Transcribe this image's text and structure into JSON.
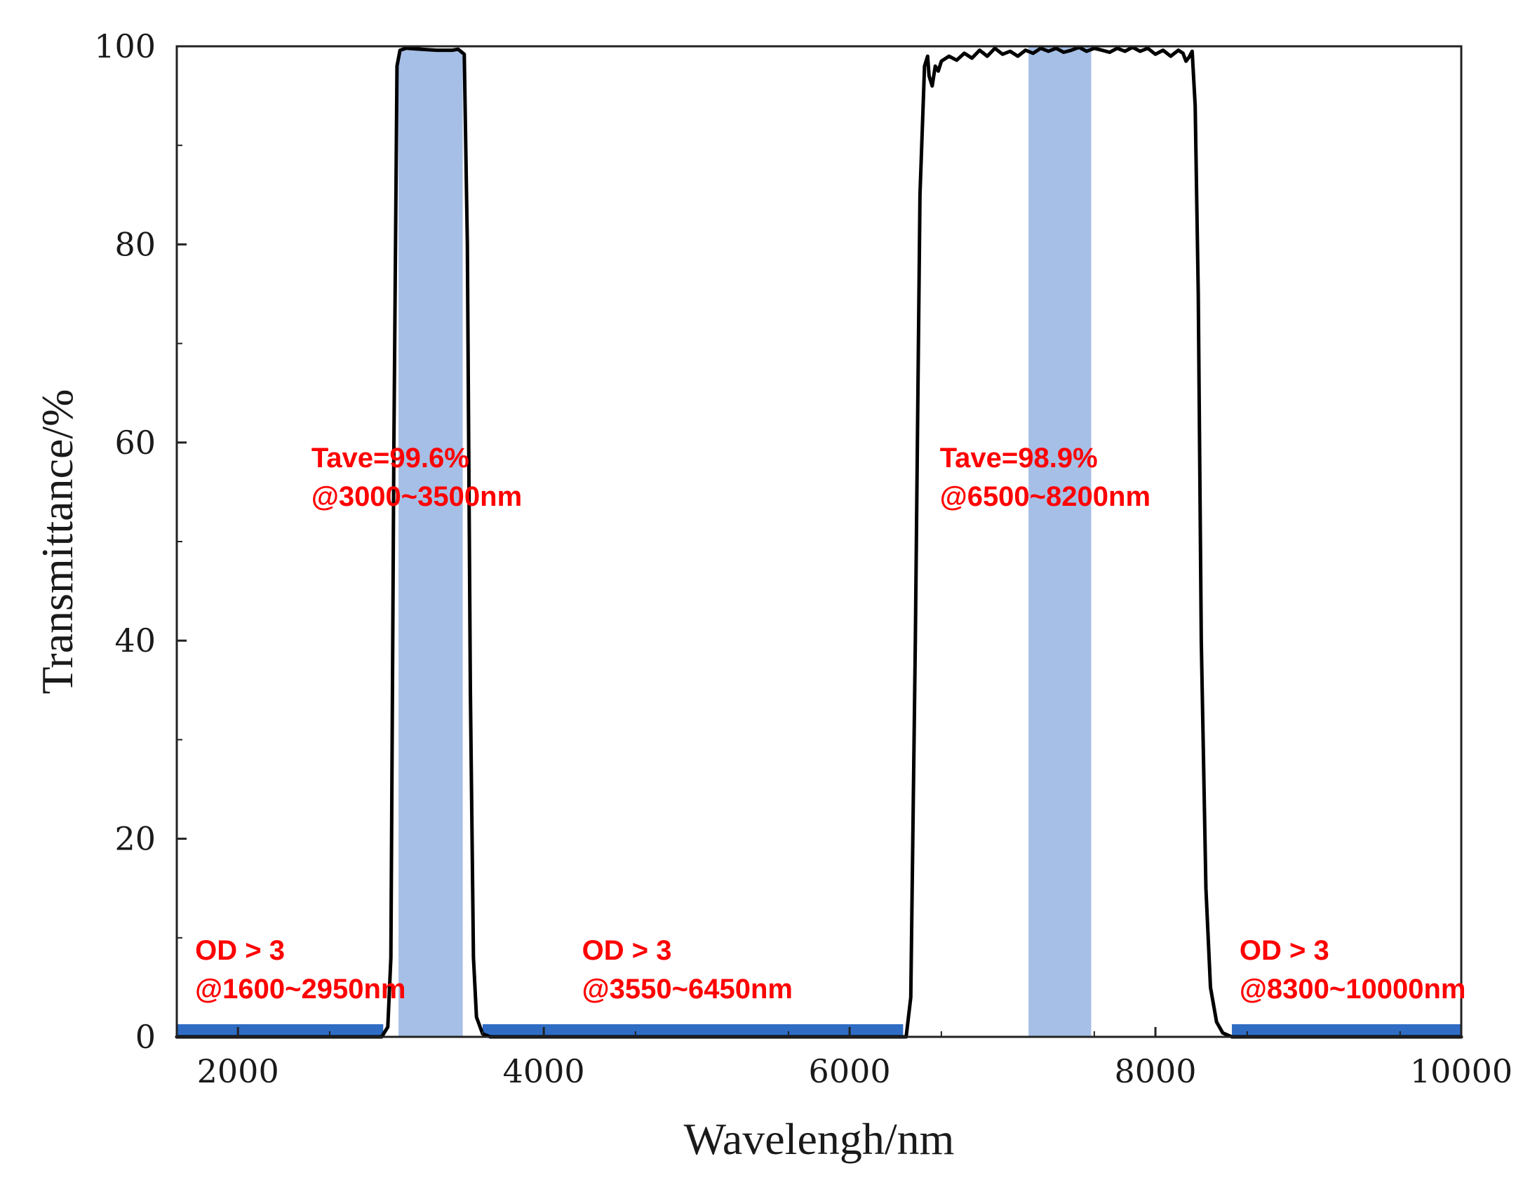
{
  "chart_data": {
    "type": "line",
    "title": "",
    "xlabel": "Wavelengh/nm",
    "ylabel": "Transmittance/%",
    "xlim": [
      1600,
      10000
    ],
    "ylim": [
      0,
      100
    ],
    "x_ticks": [
      2000,
      4000,
      6000,
      8000,
      10000
    ],
    "y_ticks": [
      0,
      20,
      40,
      60,
      80,
      100
    ],
    "x_minor_step": 1000,
    "y_minor_step": 10,
    "grid": false,
    "series": [
      {
        "name": "transmittance",
        "x": [
          1600,
          2940,
          2980,
          3000,
          3020,
          3040,
          3060,
          3100,
          3200,
          3300,
          3400,
          3440,
          3480,
          3500,
          3520,
          3540,
          3560,
          3600,
          3650,
          6370,
          6400,
          6430,
          6460,
          6490,
          6510,
          6520,
          6540,
          6560,
          6580,
          6600,
          6650,
          6700,
          6750,
          6800,
          6850,
          6900,
          6950,
          7000,
          7050,
          7100,
          7150,
          7200,
          7250,
          7300,
          7350,
          7400,
          7450,
          7500,
          7550,
          7600,
          7650,
          7700,
          7750,
          7800,
          7850,
          7900,
          7950,
          8000,
          8050,
          8100,
          8150,
          8180,
          8200,
          8220,
          8240,
          8260,
          8280,
          8300,
          8330,
          8360,
          8400,
          8440,
          8500,
          10000
        ],
        "y": [
          0,
          0,
          1,
          8,
          60,
          98,
          99.6,
          99.8,
          99.7,
          99.6,
          99.6,
          99.7,
          99.2,
          80,
          35,
          8,
          2,
          0.3,
          0,
          0,
          4,
          40,
          85,
          98,
          99,
          97,
          96,
          98,
          97.5,
          98.5,
          99,
          98.6,
          99.3,
          98.8,
          99.6,
          99.0,
          99.8,
          99.2,
          99.5,
          99.0,
          99.6,
          99.3,
          99.8,
          99.5,
          99.8,
          99.4,
          99.6,
          99.9,
          99.5,
          99.8,
          99.6,
          99.4,
          99.8,
          99.5,
          99.9,
          99.5,
          99.8,
          99.2,
          99.6,
          99.0,
          99.6,
          99.3,
          98.5,
          98.9,
          99.5,
          94,
          75,
          40,
          15,
          5,
          1.5,
          0.4,
          0,
          0
        ],
        "color": "#000000"
      }
    ],
    "shaded_bands": [
      {
        "x_start": 3050,
        "x_end": 3470,
        "y_top": 99.6,
        "color": "#a6bfe6"
      },
      {
        "x_start": 7170,
        "x_end": 7580,
        "y_top": 100,
        "color": "#a6bfe6"
      }
    ],
    "blocking_bars": [
      {
        "x_start": 1600,
        "x_end": 2950,
        "color": "#2f6cc4"
      },
      {
        "x_start": 3600,
        "x_end": 6350,
        "color": "#2f6cc4"
      },
      {
        "x_start": 8500,
        "x_end": 10000,
        "color": "#2f6cc4"
      }
    ],
    "annotations": [
      {
        "line1": "Tave=99.6%",
        "line2": "@3000~3500nm",
        "x": 2480,
        "y": 57.5
      },
      {
        "line1": "Tave=98.9%",
        "line2": "@6500~8200nm",
        "x": 6590,
        "y": 57.5
      },
      {
        "line1": "OD > 3",
        "line2": "@1600~2950nm",
        "x": 1720,
        "y": 7.8
      },
      {
        "line1": "OD > 3",
        "line2": "@3550~6450nm",
        "x": 4250,
        "y": 7.8
      },
      {
        "line1": "OD > 3",
        "line2": "@8300~10000nm",
        "x": 8550,
        "y": 7.8
      }
    ],
    "annotation_color": "#ff0000"
  }
}
